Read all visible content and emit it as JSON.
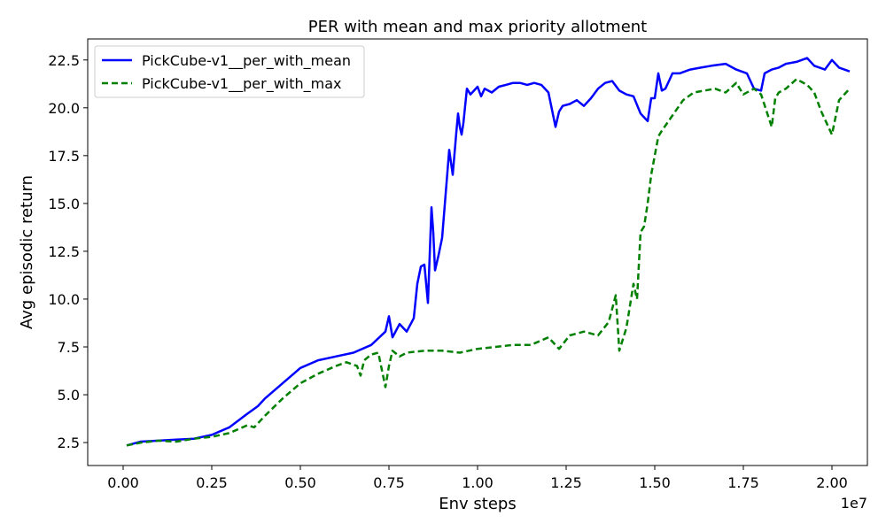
{
  "chart_data": {
    "type": "line",
    "title": "PER with mean and max priority allotment",
    "xlabel": "Env steps",
    "ylabel": "Avg episodic return",
    "x_multiplier_label": "1e7",
    "xlim": [
      -0.1,
      2.1
    ],
    "ylim": [
      1.3,
      23.6
    ],
    "x_ticks": [
      0.0,
      0.25,
      0.5,
      0.75,
      1.0,
      1.25,
      1.5,
      1.75,
      2.0
    ],
    "x_tick_labels": [
      "0.00",
      "0.25",
      "0.50",
      "0.75",
      "1.00",
      "1.25",
      "1.50",
      "1.75",
      "2.00"
    ],
    "y_ticks": [
      2.5,
      5.0,
      7.5,
      10.0,
      12.5,
      15.0,
      17.5,
      20.0,
      22.5
    ],
    "y_tick_labels": [
      "2.5",
      "5.0",
      "7.5",
      "10.0",
      "12.5",
      "15.0",
      "17.5",
      "20.0",
      "22.5"
    ],
    "grid": false,
    "legend_position": "top-left",
    "series": [
      {
        "name": "PickCube-v1__per_with_mean",
        "color": "#0000ff",
        "dash": "solid",
        "x": [
          0.01,
          0.05,
          0.1,
          0.15,
          0.2,
          0.25,
          0.3,
          0.35,
          0.38,
          0.4,
          0.45,
          0.5,
          0.55,
          0.6,
          0.65,
          0.7,
          0.74,
          0.75,
          0.76,
          0.78,
          0.8,
          0.82,
          0.83,
          0.84,
          0.85,
          0.86,
          0.87,
          0.875,
          0.88,
          0.89,
          0.9,
          0.92,
          0.93,
          0.94,
          0.945,
          0.95,
          0.955,
          0.96,
          0.97,
          0.98,
          0.99,
          1.0,
          1.01,
          1.02,
          1.04,
          1.06,
          1.08,
          1.1,
          1.12,
          1.14,
          1.16,
          1.18,
          1.2,
          1.22,
          1.23,
          1.24,
          1.26,
          1.28,
          1.3,
          1.32,
          1.34,
          1.36,
          1.38,
          1.4,
          1.42,
          1.44,
          1.46,
          1.48,
          1.49,
          1.5,
          1.51,
          1.52,
          1.53,
          1.54,
          1.55,
          1.57,
          1.6,
          1.63,
          1.66,
          1.7,
          1.73,
          1.76,
          1.78,
          1.8,
          1.81,
          1.82,
          1.83,
          1.85,
          1.87,
          1.9,
          1.93,
          1.95,
          1.98,
          2.0,
          2.02,
          2.05
        ],
        "y": [
          2.35,
          2.55,
          2.6,
          2.65,
          2.7,
          2.9,
          3.3,
          4.0,
          4.4,
          4.8,
          5.6,
          6.4,
          6.8,
          7.0,
          7.2,
          7.6,
          8.3,
          9.1,
          8.0,
          8.7,
          8.3,
          9.0,
          10.8,
          11.7,
          11.8,
          9.8,
          14.8,
          13.5,
          11.5,
          12.3,
          13.2,
          17.8,
          16.5,
          18.7,
          19.7,
          19.0,
          18.6,
          19.2,
          21.0,
          20.7,
          20.9,
          21.1,
          20.6,
          21.0,
          20.8,
          21.1,
          21.2,
          21.3,
          21.3,
          21.2,
          21.3,
          21.2,
          20.8,
          19.0,
          19.8,
          20.1,
          20.2,
          20.4,
          20.1,
          20.5,
          21.0,
          21.3,
          21.4,
          20.9,
          20.7,
          20.6,
          19.7,
          19.3,
          20.5,
          20.5,
          21.8,
          20.9,
          21.0,
          21.4,
          21.8,
          21.8,
          22.0,
          22.1,
          22.2,
          22.3,
          22.0,
          21.8,
          21.0,
          20.9,
          21.8,
          21.9,
          22.0,
          22.1,
          22.3,
          22.4,
          22.6,
          22.2,
          22.0,
          22.5,
          22.1,
          21.9
        ]
      },
      {
        "name": "PickCube-v1__per_with_max",
        "color": "#008000",
        "dash": "dashed",
        "x": [
          0.01,
          0.05,
          0.1,
          0.15,
          0.2,
          0.25,
          0.3,
          0.35,
          0.37,
          0.4,
          0.45,
          0.5,
          0.55,
          0.6,
          0.63,
          0.66,
          0.67,
          0.68,
          0.7,
          0.72,
          0.74,
          0.75,
          0.76,
          0.78,
          0.8,
          0.85,
          0.9,
          0.95,
          1.0,
          1.05,
          1.1,
          1.15,
          1.2,
          1.23,
          1.26,
          1.3,
          1.34,
          1.37,
          1.39,
          1.4,
          1.42,
          1.44,
          1.45,
          1.46,
          1.47,
          1.48,
          1.49,
          1.5,
          1.51,
          1.52,
          1.55,
          1.58,
          1.61,
          1.64,
          1.67,
          1.7,
          1.73,
          1.75,
          1.78,
          1.8,
          1.83,
          1.84,
          1.85,
          1.87,
          1.9,
          1.93,
          1.95,
          1.97,
          2.0,
          2.02,
          2.05
        ],
        "y": [
          2.35,
          2.5,
          2.6,
          2.55,
          2.7,
          2.8,
          3.0,
          3.4,
          3.3,
          3.9,
          4.8,
          5.6,
          6.1,
          6.5,
          6.7,
          6.5,
          6.0,
          6.8,
          7.1,
          7.2,
          5.4,
          6.5,
          7.3,
          7.0,
          7.2,
          7.3,
          7.3,
          7.2,
          7.4,
          7.5,
          7.6,
          7.6,
          8.0,
          7.4,
          8.1,
          8.3,
          8.1,
          8.8,
          10.2,
          7.3,
          8.5,
          10.8,
          10.0,
          13.5,
          13.8,
          15.0,
          16.5,
          17.5,
          18.5,
          18.8,
          19.6,
          20.4,
          20.8,
          20.9,
          21.0,
          20.8,
          21.3,
          20.7,
          21.0,
          20.7,
          19.0,
          20.5,
          20.8,
          21.0,
          21.5,
          21.2,
          20.8,
          19.8,
          18.6,
          20.4,
          21.0
        ]
      }
    ]
  }
}
